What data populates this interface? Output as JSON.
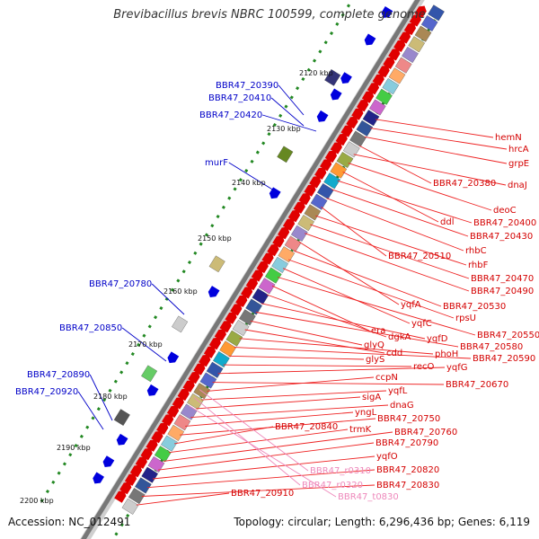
{
  "title": "Brevibacillus brevis NBRC 100599, complete genome",
  "footer": {
    "accession": "Accession: NC_012491",
    "summary": "Topology: circular; Length: 6,296,436 bp; Genes: 6,119"
  },
  "colors": {
    "backbone": "#777777",
    "forward_gene": "#e00000",
    "reverse_gene": "#0000dd",
    "label_left": "#0000c8",
    "label_right": "#d40000",
    "label_rna": "#ee88bb",
    "gc_dots": "#228822"
  },
  "ticks": [
    "2120 kbp",
    "2130 kbp",
    "2140 kbp",
    "2150 kbp",
    "2160 kbp",
    "2170 kbp",
    "2180 kbp",
    "2190 kbp",
    "2200 kbp"
  ],
  "labels_left": [
    "BBR47_20390",
    "BBR47_20410",
    "BBR47_20420",
    "murF",
    "BBR47_20780",
    "BBR47_20850",
    "BBR47_20890",
    "BBR47_20920"
  ],
  "labels_right": [
    "hemN",
    "hrcA",
    "grpE",
    "BBR47_20380",
    "dnaJ",
    "deoC",
    "ddl",
    "BBR47_20400",
    "BBR47_20430",
    "rhbC",
    "BBR47_20510",
    "rhbF",
    "BBR47_20470",
    "BBR47_20490",
    "yqfA",
    "BBR47_20530",
    "rpsU",
    "yqfC",
    "BBR47_20550",
    "era",
    "dgkA",
    "yqfD",
    "BBR47_20580",
    "glyQ",
    "cdd",
    "phoH",
    "BBR47_20590",
    "glyS",
    "recO",
    "yqfG",
    "BBR47_20670",
    "ccpN",
    "yqfL",
    "sigA",
    "dnaG",
    "yngL",
    "BBR47_20750",
    "BBR47_20840",
    "trmK",
    "BBR47_20760",
    "BBR47_20790",
    "yqfO",
    "BBR47_20820",
    "BBR47_20830",
    "BBR47_20910"
  ],
  "labels_rna": [
    "BBR47_r0310",
    "BBR47_r0320",
    "BBR47_t0830"
  ]
}
